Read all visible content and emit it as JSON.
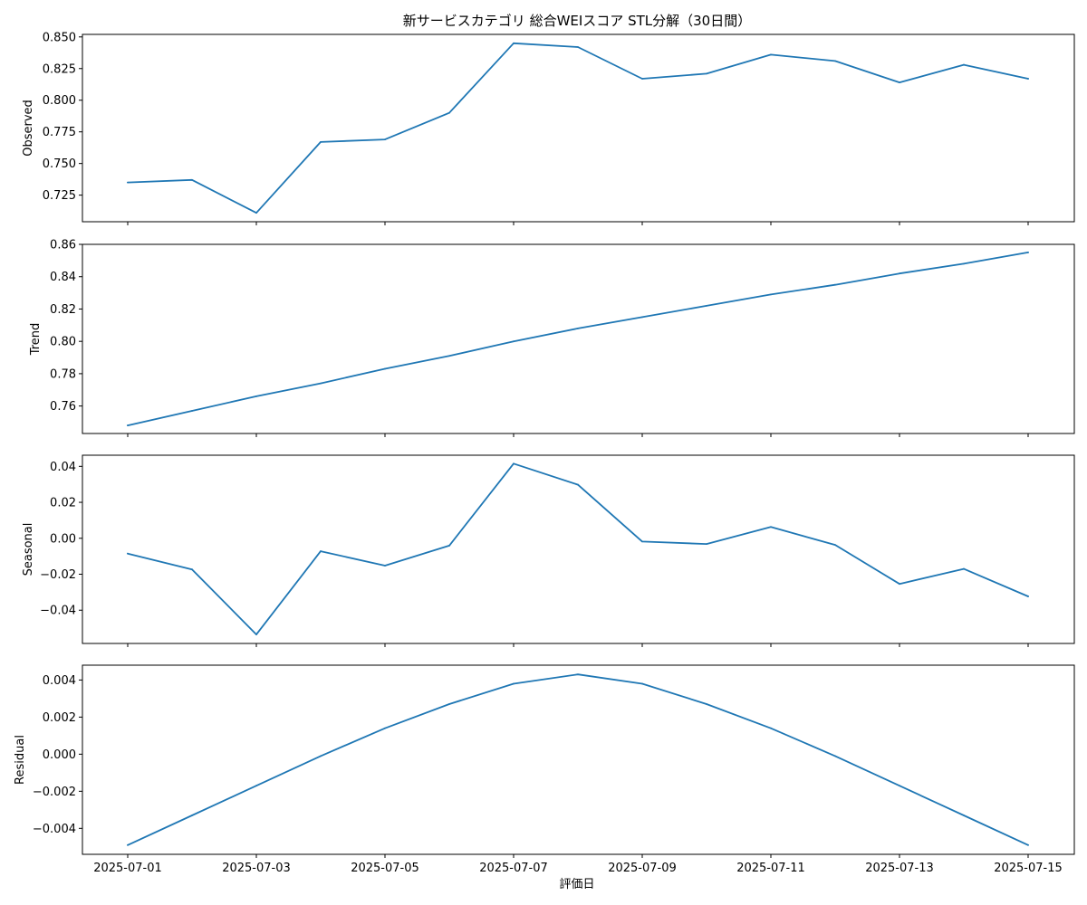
{
  "chart_data": {
    "type": "line",
    "title": "新サービスカテゴリ 総合WEIスコア STL分解（30日間）",
    "xlabel": "評価日",
    "x": [
      "2025-07-01",
      "2025-07-02",
      "2025-07-03",
      "2025-07-04",
      "2025-07-05",
      "2025-07-06",
      "2025-07-07",
      "2025-07-08",
      "2025-07-09",
      "2025-07-10",
      "2025-07-11",
      "2025-07-12",
      "2025-07-13",
      "2025-07-14",
      "2025-07-15"
    ],
    "x_tick_labels": [
      "2025-07-01",
      "2025-07-03",
      "2025-07-05",
      "2025-07-07",
      "2025-07-09",
      "2025-07-11",
      "2025-07-13",
      "2025-07-15"
    ],
    "line_color": "#1f77b4",
    "grid": false,
    "panels": [
      {
        "ylabel": "Observed",
        "ylim": [
          0.704,
          0.852
        ],
        "yticks": [
          "0.725",
          "0.750",
          "0.775",
          "0.800",
          "0.825",
          "0.850"
        ],
        "values": [
          0.735,
          0.737,
          0.711,
          0.767,
          0.769,
          0.79,
          0.845,
          0.842,
          0.817,
          0.821,
          0.836,
          0.831,
          0.814,
          0.828,
          0.817
        ]
      },
      {
        "ylabel": "Trend",
        "ylim": [
          0.743,
          0.86
        ],
        "yticks": [
          "0.76",
          "0.78",
          "0.80",
          "0.82",
          "0.84",
          "0.86"
        ],
        "values": [
          0.748,
          0.757,
          0.766,
          0.774,
          0.783,
          0.791,
          0.8,
          0.808,
          0.815,
          0.822,
          0.829,
          0.835,
          0.842,
          0.848,
          0.855
        ]
      },
      {
        "ylabel": "Seasonal",
        "ylim": [
          -0.0585,
          0.0462
        ],
        "yticks": [
          "−0.04",
          "−0.02",
          "0.00",
          "0.02",
          "0.04"
        ],
        "values": [
          -0.0085,
          -0.0173,
          -0.0535,
          -0.0072,
          -0.0152,
          -0.0041,
          0.0415,
          0.0298,
          -0.0018,
          -0.0032,
          0.0063,
          -0.0037,
          -0.0254,
          -0.017,
          -0.0323
        ]
      },
      {
        "ylabel": "Residual",
        "ylim": [
          -0.0054,
          0.0048
        ],
        "yticks": [
          "−0.004",
          "−0.002",
          "0.000",
          "0.002",
          "0.004"
        ],
        "values": [
          -0.0049,
          -0.0033,
          -0.0017,
          -0.0001,
          0.0014,
          0.0027,
          0.0038,
          0.0043,
          0.0038,
          0.0027,
          0.0014,
          -0.0001,
          -0.0017,
          -0.0033,
          -0.0049
        ]
      }
    ]
  }
}
